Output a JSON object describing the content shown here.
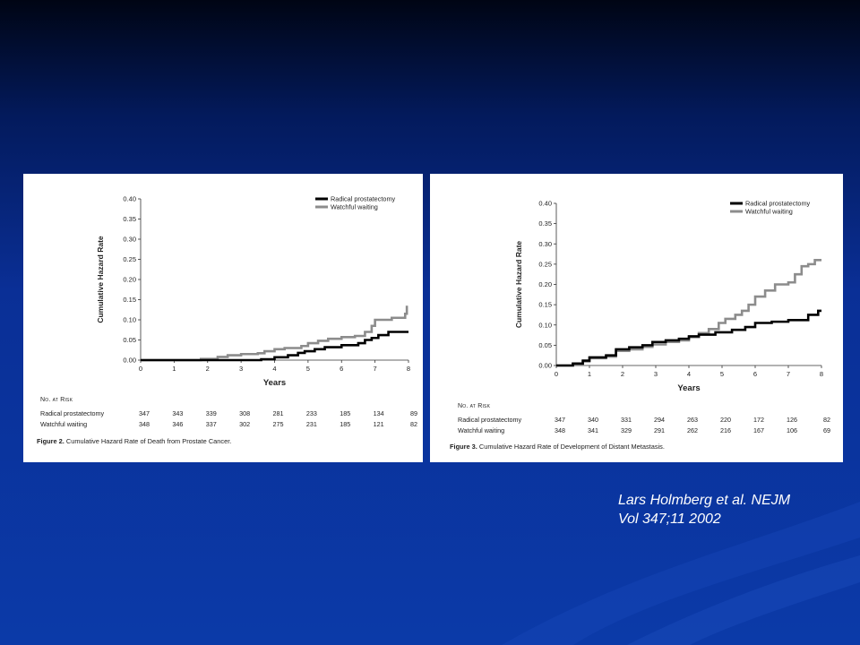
{
  "citation": {
    "line1": "Lars Holmberg et al.  NEJM",
    "line2": "Vol 347;11 2002"
  },
  "colors": {
    "background": "#0b3aa8",
    "radical": "#000000",
    "watchful": "#8c8c8c"
  },
  "chart_data": [
    {
      "type": "line",
      "caption_label": "Figure 2.",
      "caption_text": "Cumulative Hazard Rate of Death from Prostate Cancer.",
      "xlabel": "Years",
      "ylabel": "Cumulative Hazard Rate",
      "xlim": [
        0,
        8
      ],
      "ylim": [
        0,
        0.4
      ],
      "x_ticks": [
        "0",
        "1",
        "2",
        "3",
        "4",
        "5",
        "6",
        "7",
        "8"
      ],
      "y_ticks": [
        "0.00",
        "0.05",
        "0.10",
        "0.15",
        "0.20",
        "0.25",
        "0.30",
        "0.35",
        "0.40"
      ],
      "legend_position": "top-right",
      "series": [
        {
          "name": "Radical prostatectomy",
          "color": "#000000",
          "x": [
            0,
            3.6,
            4.0,
            4.4,
            4.7,
            4.9,
            5.2,
            5.5,
            6.0,
            6.5,
            6.7,
            6.9,
            7.1,
            7.4,
            8.0
          ],
          "y": [
            0,
            0.002,
            0.007,
            0.012,
            0.018,
            0.022,
            0.027,
            0.032,
            0.037,
            0.042,
            0.05,
            0.055,
            0.062,
            0.07,
            0.07
          ]
        },
        {
          "name": "Watchful waiting",
          "color": "#8c8c8c",
          "x": [
            0,
            1.8,
            2.3,
            2.6,
            3.0,
            3.5,
            3.7,
            4.0,
            4.3,
            4.8,
            5.0,
            5.3,
            5.6,
            6.0,
            6.4,
            6.7,
            6.9,
            7.0,
            7.5,
            7.9,
            7.95
          ],
          "y": [
            0,
            0.003,
            0.008,
            0.012,
            0.015,
            0.017,
            0.022,
            0.027,
            0.03,
            0.035,
            0.042,
            0.048,
            0.053,
            0.057,
            0.06,
            0.07,
            0.085,
            0.1,
            0.105,
            0.115,
            0.135
          ]
        }
      ],
      "risk_table": {
        "title": "No. at Risk",
        "rows": [
          {
            "label": "Radical prostatectomy",
            "values": [
              "347",
              "343",
              "339",
              "308",
              "281",
              "233",
              "185",
              "134",
              "89"
            ]
          },
          {
            "label": "Watchful waiting",
            "values": [
              "348",
              "346",
              "337",
              "302",
              "275",
              "231",
              "185",
              "121",
              "82"
            ]
          }
        ]
      }
    },
    {
      "type": "line",
      "caption_label": "Figure 3.",
      "caption_text": "Cumulative Hazard Rate of Development of Distant Metastasis.",
      "xlabel": "Years",
      "ylabel": "Cumulative Hazard Rate",
      "xlim": [
        0,
        8
      ],
      "ylim": [
        0,
        0.4
      ],
      "x_ticks": [
        "0",
        "1",
        "2",
        "3",
        "4",
        "5",
        "6",
        "7",
        "8"
      ],
      "y_ticks": [
        "0.00",
        "0.05",
        "0.10",
        "0.15",
        "0.20",
        "0.25",
        "0.30",
        "0.35",
        "0.40"
      ],
      "legend_position": "top-right",
      "series": [
        {
          "name": "Radical prostatectomy",
          "color": "#000000",
          "x": [
            0,
            0.5,
            0.8,
            1.0,
            1.5,
            1.8,
            2.2,
            2.6,
            2.9,
            3.3,
            3.7,
            4.0,
            4.3,
            4.8,
            5.3,
            5.7,
            6.0,
            6.5,
            7.0,
            7.6,
            7.9,
            8.0
          ],
          "y": [
            0,
            0.005,
            0.012,
            0.02,
            0.025,
            0.04,
            0.045,
            0.05,
            0.058,
            0.062,
            0.066,
            0.072,
            0.076,
            0.082,
            0.088,
            0.095,
            0.105,
            0.108,
            0.112,
            0.125,
            0.135,
            0.135
          ]
        },
        {
          "name": "Watchful waiting",
          "color": "#8c8c8c",
          "x": [
            0,
            0.5,
            0.8,
            1.0,
            1.5,
            1.8,
            2.2,
            2.6,
            2.9,
            3.3,
            3.7,
            4.0,
            4.3,
            4.6,
            4.9,
            5.1,
            5.4,
            5.6,
            5.8,
            6.0,
            6.3,
            6.6,
            7.0,
            7.2,
            7.4,
            7.6,
            7.8,
            8.0
          ],
          "y": [
            0,
            0.004,
            0.01,
            0.018,
            0.022,
            0.036,
            0.04,
            0.046,
            0.052,
            0.058,
            0.062,
            0.07,
            0.08,
            0.09,
            0.105,
            0.115,
            0.125,
            0.135,
            0.15,
            0.17,
            0.185,
            0.2,
            0.205,
            0.225,
            0.245,
            0.25,
            0.26,
            0.26
          ]
        }
      ],
      "risk_table": {
        "title": "No. at Risk",
        "rows": [
          {
            "label": "Radical prostatectomy",
            "values": [
              "347",
              "340",
              "331",
              "294",
              "263",
              "220",
              "172",
              "126",
              "82"
            ]
          },
          {
            "label": "Watchful waiting",
            "values": [
              "348",
              "341",
              "329",
              "291",
              "262",
              "216",
              "167",
              "106",
              "69"
            ]
          }
        ]
      }
    }
  ]
}
